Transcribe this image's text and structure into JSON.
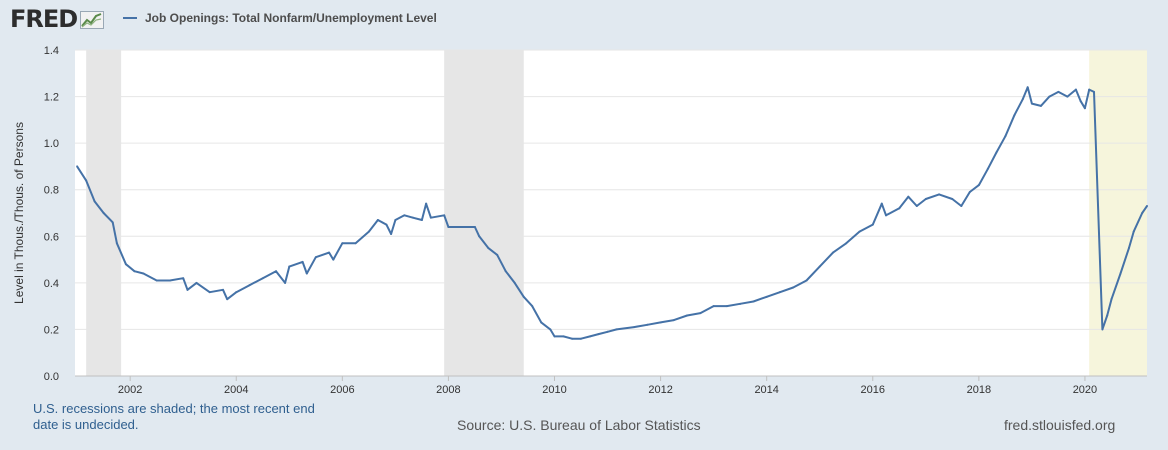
{
  "header": {
    "logo_text": "FRED",
    "legend_label": "Job Openings: Total Nonfarm/Unemployment Level"
  },
  "footer": {
    "notes": "U.S. recessions are shaded; the most recent end date is undecided.",
    "source": "Source: U.S. Bureau of Labor Statistics",
    "site": "fred.stlouisfed.org"
  },
  "colors": {
    "line": "#4572a7",
    "recession_shade": "#e6e6e6",
    "current_recession_shade": "#f6f5dc",
    "plot_bg": "#ffffff",
    "page_bg": "#e1e9f0"
  },
  "chart_data": {
    "type": "line",
    "title": "",
    "xlabel": "",
    "ylabel": "Level in Thous./Thous. of Persons",
    "xlim": [
      2000.96,
      2021.17
    ],
    "ylim": [
      0,
      1.4
    ],
    "grid": true,
    "legend": "top-left",
    "x_ticks": [
      "2002",
      "2004",
      "2006",
      "2008",
      "2010",
      "2012",
      "2014",
      "2016",
      "2018",
      "2020"
    ],
    "y_ticks": [
      "0.0",
      "0.2",
      "0.4",
      "0.6",
      "0.8",
      "1.0",
      "1.2",
      "1.4"
    ],
    "recessions": [
      {
        "start": "2001-03",
        "end": "2001-11",
        "start_year": 2001.17,
        "end_year": 2001.83
      },
      {
        "start": "2007-12",
        "end": "2009-06",
        "start_year": 2007.92,
        "end_year": 2009.42
      },
      {
        "start": "2020-02",
        "end": "undecided",
        "start_year": 2020.08,
        "end_year": 2021.17,
        "undecided": true
      }
    ],
    "series": [
      {
        "name": "Job Openings: Total Nonfarm/Unemployment Level",
        "points": [
          [
            2001.0,
            0.9
          ],
          [
            2001.17,
            0.84
          ],
          [
            2001.33,
            0.75
          ],
          [
            2001.5,
            0.7
          ],
          [
            2001.67,
            0.66
          ],
          [
            2001.75,
            0.57
          ],
          [
            2001.92,
            0.48
          ],
          [
            2002.08,
            0.45
          ],
          [
            2002.25,
            0.44
          ],
          [
            2002.5,
            0.41
          ],
          [
            2002.75,
            0.41
          ],
          [
            2003.0,
            0.42
          ],
          [
            2003.08,
            0.37
          ],
          [
            2003.25,
            0.4
          ],
          [
            2003.5,
            0.36
          ],
          [
            2003.75,
            0.37
          ],
          [
            2003.83,
            0.33
          ],
          [
            2004.0,
            0.36
          ],
          [
            2004.25,
            0.39
          ],
          [
            2004.5,
            0.42
          ],
          [
            2004.75,
            0.45
          ],
          [
            2004.92,
            0.4
          ],
          [
            2005.0,
            0.47
          ],
          [
            2005.25,
            0.49
          ],
          [
            2005.33,
            0.44
          ],
          [
            2005.5,
            0.51
          ],
          [
            2005.75,
            0.53
          ],
          [
            2005.83,
            0.5
          ],
          [
            2006.0,
            0.57
          ],
          [
            2006.25,
            0.57
          ],
          [
            2006.5,
            0.62
          ],
          [
            2006.67,
            0.67
          ],
          [
            2006.83,
            0.65
          ],
          [
            2006.92,
            0.61
          ],
          [
            2007.0,
            0.67
          ],
          [
            2007.17,
            0.69
          ],
          [
            2007.33,
            0.68
          ],
          [
            2007.5,
            0.67
          ],
          [
            2007.58,
            0.74
          ],
          [
            2007.67,
            0.68
          ],
          [
            2007.92,
            0.69
          ],
          [
            2008.0,
            0.64
          ],
          [
            2008.25,
            0.64
          ],
          [
            2008.5,
            0.64
          ],
          [
            2008.58,
            0.6
          ],
          [
            2008.75,
            0.55
          ],
          [
            2008.92,
            0.52
          ],
          [
            2009.08,
            0.45
          ],
          [
            2009.25,
            0.4
          ],
          [
            2009.42,
            0.34
          ],
          [
            2009.58,
            0.3
          ],
          [
            2009.75,
            0.23
          ],
          [
            2009.92,
            0.2
          ],
          [
            2010.0,
            0.17
          ],
          [
            2010.17,
            0.17
          ],
          [
            2010.33,
            0.16
          ],
          [
            2010.5,
            0.16
          ],
          [
            2010.67,
            0.17
          ],
          [
            2010.83,
            0.18
          ],
          [
            2011.0,
            0.19
          ],
          [
            2011.17,
            0.2
          ],
          [
            2011.5,
            0.21
          ],
          [
            2011.75,
            0.22
          ],
          [
            2012.0,
            0.23
          ],
          [
            2012.25,
            0.24
          ],
          [
            2012.5,
            0.26
          ],
          [
            2012.75,
            0.27
          ],
          [
            2013.0,
            0.3
          ],
          [
            2013.25,
            0.3
          ],
          [
            2013.5,
            0.31
          ],
          [
            2013.75,
            0.32
          ],
          [
            2014.0,
            0.34
          ],
          [
            2014.25,
            0.36
          ],
          [
            2014.5,
            0.38
          ],
          [
            2014.75,
            0.41
          ],
          [
            2015.0,
            0.47
          ],
          [
            2015.25,
            0.53
          ],
          [
            2015.5,
            0.57
          ],
          [
            2015.75,
            0.62
          ],
          [
            2016.0,
            0.65
          ],
          [
            2016.17,
            0.74
          ],
          [
            2016.25,
            0.69
          ],
          [
            2016.5,
            0.72
          ],
          [
            2016.67,
            0.77
          ],
          [
            2016.83,
            0.73
          ],
          [
            2017.0,
            0.76
          ],
          [
            2017.25,
            0.78
          ],
          [
            2017.5,
            0.76
          ],
          [
            2017.67,
            0.73
          ],
          [
            2017.83,
            0.79
          ],
          [
            2018.0,
            0.82
          ],
          [
            2018.17,
            0.89
          ],
          [
            2018.33,
            0.96
          ],
          [
            2018.5,
            1.03
          ],
          [
            2018.67,
            1.12
          ],
          [
            2018.83,
            1.19
          ],
          [
            2018.92,
            1.24
          ],
          [
            2019.0,
            1.17
          ],
          [
            2019.17,
            1.16
          ],
          [
            2019.33,
            1.2
          ],
          [
            2019.5,
            1.22
          ],
          [
            2019.67,
            1.2
          ],
          [
            2019.83,
            1.23
          ],
          [
            2019.92,
            1.18
          ],
          [
            2020.0,
            1.15
          ],
          [
            2020.08,
            1.23
          ],
          [
            2020.17,
            1.22
          ],
          [
            2020.33,
            0.2
          ],
          [
            2020.42,
            0.26
          ],
          [
            2020.5,
            0.33
          ],
          [
            2020.67,
            0.44
          ],
          [
            2020.83,
            0.55
          ],
          [
            2020.92,
            0.62
          ],
          [
            2021.08,
            0.7
          ],
          [
            2021.17,
            0.73
          ]
        ]
      }
    ]
  }
}
